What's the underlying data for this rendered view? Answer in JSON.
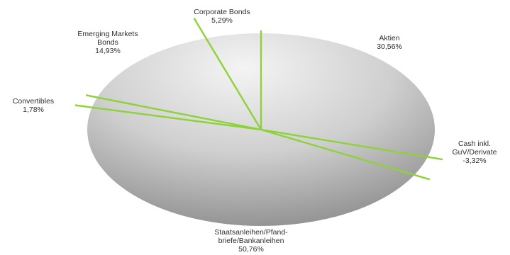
{
  "chart_data": {
    "type": "pie",
    "title": "",
    "colors": {
      "separator": "#8ed23a",
      "fill_light": "#f4f4f4",
      "fill_dark": "#7a7a7a",
      "text": "#2e2e2e"
    },
    "slices": [
      {
        "name_lines": [
          "Aktien"
        ],
        "value": 30.56,
        "value_label": "30,56%"
      },
      {
        "name_lines": [
          "Corporate Bonds"
        ],
        "value": 5.29,
        "value_label": "5,29%"
      },
      {
        "name_lines": [
          "Emerging Markets",
          "Bonds"
        ],
        "value": 14.93,
        "value_label": "14,93%"
      },
      {
        "name_lines": [
          "Convertibles"
        ],
        "value": 1.78,
        "value_label": "1,78%"
      },
      {
        "name_lines": [
          "Staatsanleihen/Pfand-",
          "briefe/Bankanleihen"
        ],
        "value": 50.76,
        "value_label": "50,76%"
      },
      {
        "name_lines": [
          "Cash inkl.",
          "GuV/Derivate"
        ],
        "value": -3.32,
        "value_label": "-3,32%"
      }
    ]
  }
}
